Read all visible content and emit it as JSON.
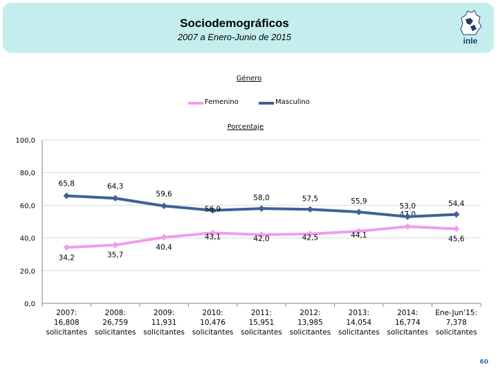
{
  "header": {
    "title": "Sociodemográficos",
    "subtitle": "2007 a Enero-Junio de 2015",
    "logo_text": "inIe"
  },
  "chart_data": {
    "type": "line",
    "title": "Género",
    "ylabel": "Porcentaje",
    "ylim": [
      0,
      100
    ],
    "yticks": [
      "0,0",
      "20,0",
      "40,0",
      "60,0",
      "80,0",
      "100,0"
    ],
    "categories": [
      [
        "2007:",
        "16,808",
        "solicitantes"
      ],
      [
        "2008:",
        "26,759",
        "solicitantes"
      ],
      [
        "2009:",
        "11,931",
        "solicitantes"
      ],
      [
        "2010:",
        "10,476",
        "solicitantes"
      ],
      [
        "2011:",
        "15,951",
        "solicitantes"
      ],
      [
        "2012:",
        "13,985",
        "solicitantes"
      ],
      [
        "2013:",
        "14,054",
        "solicitantes"
      ],
      [
        "2014:",
        "16,774",
        "solicitantes"
      ],
      [
        "Ene-Jun’15:",
        "7,378",
        "solicitantes"
      ]
    ],
    "series": [
      {
        "name": "Femenino",
        "color": "#f09cf0",
        "values": [
          34.2,
          35.7,
          40.4,
          43.1,
          42.0,
          42.5,
          44.1,
          47.0,
          45.6
        ],
        "labels": [
          "34,2",
          "35,7",
          "40,4",
          "43,1",
          "42,0",
          "42,5",
          "44,1",
          "47,0",
          "45,6"
        ]
      },
      {
        "name": "Masculino",
        "color": "#3f6296",
        "values": [
          65.8,
          64.3,
          59.6,
          56.9,
          58.0,
          57.5,
          55.9,
          53.0,
          54.4
        ],
        "labels": [
          "65,8",
          "64,3",
          "59,6",
          "56,9",
          "58,0",
          "57,5",
          "55,9",
          "53,0",
          "54,4"
        ]
      }
    ]
  },
  "page_number": "60"
}
